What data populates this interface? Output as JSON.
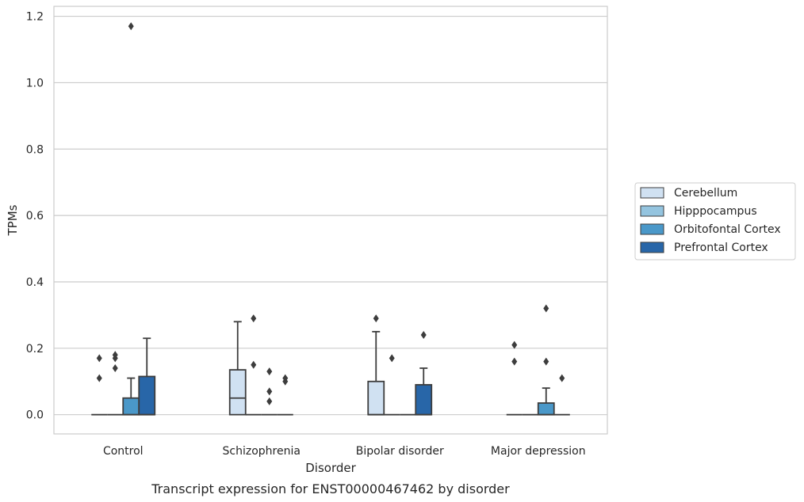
{
  "chart_data": {
    "type": "box",
    "caption": "Transcript expression for ENST00000467462 by disorder",
    "xlabel": "Disorder",
    "ylabel": "TPMs",
    "categories": [
      "Control",
      "Schizophrenia",
      "Bipolar disorder",
      "Major depression"
    ],
    "ylim": [
      -0.058,
      1.23
    ],
    "yticks": [
      0.0,
      0.2,
      0.4,
      0.6,
      0.8,
      1.0,
      1.2
    ],
    "ytick_labels": [
      "0.0",
      "0.2",
      "0.4",
      "0.6",
      "0.8",
      "1.0",
      "1.2"
    ],
    "grid": true,
    "legend_position": "right",
    "series": [
      {
        "name": "Cerebellum",
        "color": "#d0e1f2",
        "boxes": [
          {
            "q1": 0,
            "median": 0,
            "q3": 0,
            "whisker_low": 0,
            "whisker_high": 0,
            "outliers": [
              0.11,
              0.17
            ]
          },
          {
            "q1": 0,
            "median": 0.05,
            "q3": 0.135,
            "whisker_low": 0,
            "whisker_high": 0.28,
            "outliers": []
          },
          {
            "q1": 0,
            "median": 0,
            "q3": 0.1,
            "whisker_low": 0,
            "whisker_high": 0.25,
            "outliers": [
              0.29
            ]
          },
          {
            "q1": 0,
            "median": 0,
            "q3": 0,
            "whisker_low": 0,
            "whisker_high": 0,
            "outliers": [
              0.16,
              0.21
            ]
          }
        ]
      },
      {
        "name": "Hipppocampus",
        "color": "#94c4df",
        "boxes": [
          {
            "q1": 0,
            "median": 0,
            "q3": 0,
            "whisker_low": 0,
            "whisker_high": 0,
            "outliers": [
              0.14,
              0.17,
              0.18
            ]
          },
          {
            "q1": 0,
            "median": 0,
            "q3": 0,
            "whisker_low": 0,
            "whisker_high": 0,
            "outliers": [
              0.15,
              0.29
            ]
          },
          {
            "q1": 0,
            "median": 0,
            "q3": 0,
            "whisker_low": 0,
            "whisker_high": 0,
            "outliers": [
              0.17
            ]
          },
          {
            "q1": 0,
            "median": 0,
            "q3": 0,
            "whisker_low": 0,
            "whisker_high": 0,
            "outliers": []
          }
        ]
      },
      {
        "name": "Orbitofontal Cortex",
        "color": "#4a98c9",
        "boxes": [
          {
            "q1": 0,
            "median": 0,
            "q3": 0.05,
            "whisker_low": 0,
            "whisker_high": 0.11,
            "outliers": [
              1.17
            ]
          },
          {
            "q1": 0,
            "median": 0,
            "q3": 0,
            "whisker_low": 0,
            "whisker_high": 0,
            "outliers": [
              0.04,
              0.07,
              0.13
            ]
          },
          {
            "q1": 0,
            "median": 0,
            "q3": 0,
            "whisker_low": 0,
            "whisker_high": 0,
            "outliers": []
          },
          {
            "q1": 0,
            "median": 0,
            "q3": 0.035,
            "whisker_low": 0,
            "whisker_high": 0.08,
            "outliers": [
              0.16,
              0.32
            ]
          }
        ]
      },
      {
        "name": "Prefrontal Cortex",
        "color": "#2866a8",
        "boxes": [
          {
            "q1": 0,
            "median": 0,
            "q3": 0.115,
            "whisker_low": 0,
            "whisker_high": 0.23,
            "outliers": []
          },
          {
            "q1": 0,
            "median": 0,
            "q3": 0,
            "whisker_low": 0,
            "whisker_high": 0,
            "outliers": [
              0.1,
              0.11
            ]
          },
          {
            "q1": 0,
            "median": 0,
            "q3": 0.09,
            "whisker_low": 0,
            "whisker_high": 0.14,
            "outliers": [
              0.24
            ]
          },
          {
            "q1": 0,
            "median": 0,
            "q3": 0,
            "whisker_low": 0,
            "whisker_high": 0,
            "outliers": [
              0.11
            ]
          }
        ]
      }
    ]
  }
}
